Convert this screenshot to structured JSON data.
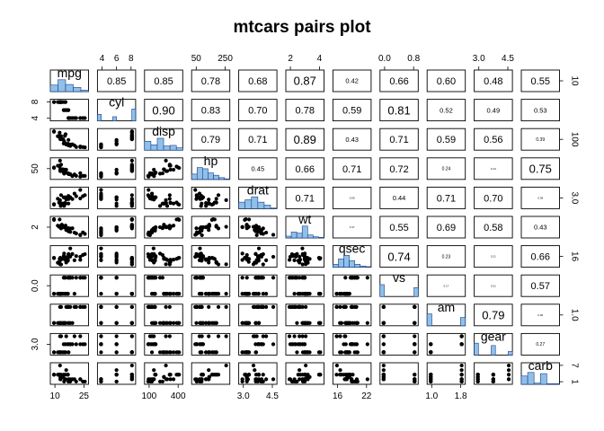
{
  "chart_data": {
    "type": "scatter",
    "title": "mtcars pairs plot",
    "variables": [
      "mpg",
      "cyl",
      "disp",
      "hp",
      "drat",
      "wt",
      "qsec",
      "vs",
      "am",
      "gear",
      "carb"
    ],
    "top_ticks": [
      {
        "col": 1,
        "labels": [
          "4",
          "6",
          "8"
        ]
      },
      {
        "col": 3,
        "labels": [
          "50",
          "250"
        ]
      },
      {
        "col": 5,
        "labels": [
          "2",
          "4"
        ]
      },
      {
        "col": 7,
        "labels": [
          "0.0",
          "0.8"
        ]
      },
      {
        "col": 9,
        "labels": [
          "3.0",
          "4.5"
        ]
      }
    ],
    "bottom_ticks": [
      {
        "col": 0,
        "labels": [
          "10",
          "25"
        ]
      },
      {
        "col": 2,
        "labels": [
          "100",
          "400"
        ]
      },
      {
        "col": 4,
        "labels": [
          "3.0",
          "4.5"
        ]
      },
      {
        "col": 6,
        "labels": [
          "16",
          "22"
        ]
      },
      {
        "col": 8,
        "labels": [
          "1.0",
          "1.8"
        ]
      }
    ],
    "left_ticks": [
      {
        "row": 1,
        "labels": [
          "4",
          "8"
        ]
      },
      {
        "row": 3,
        "labels": [
          "50"
        ]
      },
      {
        "row": 5,
        "labels": [
          "2"
        ]
      },
      {
        "row": 7,
        "labels": [
          "0.0"
        ]
      },
      {
        "row": 9,
        "labels": [
          "3.0"
        ]
      }
    ],
    "right_ticks": [
      {
        "row": 0,
        "labels": [
          "10"
        ]
      },
      {
        "row": 2,
        "labels": [
          "100"
        ]
      },
      {
        "row": 4,
        "labels": [
          "3.0"
        ]
      },
      {
        "row": 6,
        "labels": [
          "16"
        ]
      },
      {
        "row": 8,
        "labels": [
          "1.0"
        ]
      },
      {
        "row": 10,
        "labels": [
          "1",
          "7"
        ]
      }
    ],
    "correlations": [
      {
        "row": 0,
        "col": 1,
        "label": "0.85",
        "size": "normal"
      },
      {
        "row": 0,
        "col": 2,
        "label": "0.85",
        "size": "normal"
      },
      {
        "row": 0,
        "col": 3,
        "label": "0.78",
        "size": "normal"
      },
      {
        "row": 0,
        "col": 4,
        "label": "0.68",
        "size": "normal"
      },
      {
        "row": 0,
        "col": 5,
        "label": "0.87",
        "size": "large"
      },
      {
        "row": 0,
        "col": 6,
        "label": "0.42",
        "size": "small"
      },
      {
        "row": 0,
        "col": 7,
        "label": "0.66",
        "size": "normal"
      },
      {
        "row": 0,
        "col": 8,
        "label": "0.60",
        "size": "normal"
      },
      {
        "row": 0,
        "col": 9,
        "label": "0.48",
        "size": "normal"
      },
      {
        "row": 0,
        "col": 10,
        "label": "0.55",
        "size": "normal"
      },
      {
        "row": 1,
        "col": 2,
        "label": "0.90",
        "size": "large"
      },
      {
        "row": 1,
        "col": 3,
        "label": "0.83",
        "size": "normal"
      },
      {
        "row": 1,
        "col": 4,
        "label": "0.70",
        "size": "normal"
      },
      {
        "row": 1,
        "col": 5,
        "label": "0.78",
        "size": "normal"
      },
      {
        "row": 1,
        "col": 6,
        "label": "0.59",
        "size": "normal"
      },
      {
        "row": 1,
        "col": 7,
        "label": "0.81",
        "size": "large"
      },
      {
        "row": 1,
        "col": 8,
        "label": "0.52",
        "size": "small"
      },
      {
        "row": 1,
        "col": 9,
        "label": "0.49",
        "size": "small"
      },
      {
        "row": 1,
        "col": 10,
        "label": "0.53",
        "size": "small"
      },
      {
        "row": 2,
        "col": 3,
        "label": "0.79",
        "size": "normal"
      },
      {
        "row": 2,
        "col": 4,
        "label": "0.71",
        "size": "normal"
      },
      {
        "row": 2,
        "col": 5,
        "label": "0.89",
        "size": "large"
      },
      {
        "row": 2,
        "col": 6,
        "label": "0.43",
        "size": "small"
      },
      {
        "row": 2,
        "col": 7,
        "label": "0.71",
        "size": "normal"
      },
      {
        "row": 2,
        "col": 8,
        "label": "0.59",
        "size": "normal"
      },
      {
        "row": 2,
        "col": 9,
        "label": "0.56",
        "size": "normal"
      },
      {
        "row": 2,
        "col": 10,
        "label": "0.39",
        "size": "tiny"
      },
      {
        "row": 3,
        "col": 4,
        "label": "0.45",
        "size": "small"
      },
      {
        "row": 3,
        "col": 5,
        "label": "0.66",
        "size": "normal"
      },
      {
        "row": 3,
        "col": 6,
        "label": "0.71",
        "size": "normal"
      },
      {
        "row": 3,
        "col": 7,
        "label": "0.72",
        "size": "normal"
      },
      {
        "row": 3,
        "col": 8,
        "label": "0.24",
        "size": "tiny"
      },
      {
        "row": 3,
        "col": 9,
        "label": "0.13",
        "size": "micro"
      },
      {
        "row": 3,
        "col": 10,
        "label": "0.75",
        "size": "large"
      },
      {
        "row": 4,
        "col": 5,
        "label": "0.71",
        "size": "normal"
      },
      {
        "row": 4,
        "col": 6,
        "label": "0.09",
        "size": "micro"
      },
      {
        "row": 4,
        "col": 7,
        "label": "0.44",
        "size": "small"
      },
      {
        "row": 4,
        "col": 8,
        "label": "0.71",
        "size": "normal"
      },
      {
        "row": 4,
        "col": 9,
        "label": "0.70",
        "size": "normal"
      },
      {
        "row": 4,
        "col": 10,
        "label": "0.09",
        "size": "micro"
      },
      {
        "row": 5,
        "col": 6,
        "label": "0.17",
        "size": "micro"
      },
      {
        "row": 5,
        "col": 7,
        "label": "0.55",
        "size": "normal"
      },
      {
        "row": 5,
        "col": 8,
        "label": "0.69",
        "size": "normal"
      },
      {
        "row": 5,
        "col": 9,
        "label": "0.58",
        "size": "normal"
      },
      {
        "row": 5,
        "col": 10,
        "label": "0.43",
        "size": "small"
      },
      {
        "row": 6,
        "col": 7,
        "label": "0.74",
        "size": "large"
      },
      {
        "row": 6,
        "col": 8,
        "label": "0.23",
        "size": "tiny"
      },
      {
        "row": 6,
        "col": 9,
        "label": "0.21",
        "size": "micro"
      },
      {
        "row": 6,
        "col": 10,
        "label": "0.66",
        "size": "normal"
      },
      {
        "row": 7,
        "col": 8,
        "label": "0.17",
        "size": "micro"
      },
      {
        "row": 7,
        "col": 9,
        "label": "0.21",
        "size": "micro"
      },
      {
        "row": 7,
        "col": 10,
        "label": "0.57",
        "size": "normal"
      },
      {
        "row": 8,
        "col": 9,
        "label": "0.79",
        "size": "large"
      },
      {
        "row": 8,
        "col": 10,
        "label": "0.06",
        "size": "micro"
      },
      {
        "row": 9,
        "col": 10,
        "label": "0.27",
        "size": "tiny"
      }
    ],
    "histograms": [
      [
        0.55,
        1.0,
        0.6,
        0.35,
        0.12
      ],
      [
        0.55,
        0.0,
        0.0,
        0.0,
        0.35,
        0.0,
        0.0,
        0.0,
        0.0,
        1.0
      ],
      [
        0.75,
        0.45,
        1.0,
        0.35,
        0.4,
        0.2
      ],
      [
        0.45,
        1.0,
        0.9,
        0.55,
        0.35,
        0.15,
        0.05
      ],
      [
        0.55,
        0.75,
        1.0,
        0.55,
        0.3,
        0.05
      ],
      [
        0.15,
        0.5,
        0.4,
        1.0,
        0.25,
        0.1,
        0.05
      ],
      [
        0.25,
        0.7,
        1.0,
        0.55,
        0.25,
        0.1,
        0.05
      ],
      [
        1.0,
        0.0,
        0.0,
        0.0,
        0.0,
        0.0,
        0.0,
        0.0,
        0.75
      ],
      [
        1.0,
        0.0,
        0.0,
        0.0,
        0.0,
        0.0,
        0.0,
        0.7
      ],
      [
        1.0,
        0.0,
        0.0,
        0.0,
        0.8,
        0.0,
        0.0,
        0.0,
        0.3
      ],
      [
        0.7,
        1.0,
        0.1,
        0.9,
        0.05,
        0.05
      ]
    ],
    "data": {
      "mpg": [
        21.0,
        21.0,
        22.8,
        21.4,
        18.7,
        18.1,
        14.3,
        24.4,
        22.8,
        19.2,
        17.8,
        16.4,
        17.3,
        15.2,
        10.4,
        10.4,
        14.7,
        32.4,
        30.4,
        33.9,
        21.5,
        15.5,
        15.2,
        13.3,
        19.2,
        27.3,
        26.0,
        30.4,
        15.8,
        19.7,
        15.0,
        21.4
      ],
      "cyl": [
        6,
        6,
        4,
        6,
        8,
        6,
        8,
        4,
        4,
        6,
        6,
        8,
        8,
        8,
        8,
        8,
        8,
        4,
        4,
        4,
        4,
        8,
        8,
        8,
        8,
        4,
        4,
        4,
        8,
        6,
        8,
        4
      ],
      "disp": [
        160,
        160,
        108,
        258,
        360,
        225,
        360,
        146.7,
        140.8,
        167.6,
        167.6,
        275.8,
        275.8,
        275.8,
        472,
        460,
        440,
        78.7,
        75.7,
        71.1,
        120.1,
        318,
        304,
        350,
        400,
        79,
        120.3,
        95.1,
        351,
        145,
        301,
        121
      ],
      "hp": [
        110,
        110,
        93,
        110,
        175,
        105,
        245,
        62,
        95,
        123,
        123,
        180,
        180,
        180,
        205,
        215,
        230,
        66,
        52,
        65,
        97,
        150,
        150,
        245,
        175,
        66,
        91,
        113,
        264,
        175,
        335,
        109
      ],
      "drat": [
        3.9,
        3.9,
        3.85,
        3.08,
        3.15,
        2.76,
        3.21,
        3.69,
        3.92,
        3.92,
        3.92,
        3.07,
        3.07,
        3.07,
        2.93,
        3.0,
        3.23,
        4.08,
        4.93,
        4.22,
        3.7,
        2.76,
        3.15,
        3.73,
        3.08,
        4.08,
        4.43,
        3.77,
        4.22,
        3.62,
        3.54,
        4.11
      ],
      "wt": [
        2.62,
        2.875,
        2.32,
        3.215,
        3.44,
        3.46,
        3.57,
        3.19,
        3.15,
        3.44,
        3.44,
        4.07,
        3.73,
        3.78,
        5.25,
        5.424,
        5.345,
        2.2,
        1.615,
        1.835,
        2.465,
        3.52,
        3.435,
        3.84,
        3.845,
        1.935,
        2.14,
        1.513,
        3.17,
        2.77,
        3.57,
        2.78
      ],
      "qsec": [
        16.46,
        17.02,
        18.61,
        19.44,
        17.02,
        20.22,
        15.84,
        20.0,
        22.9,
        18.3,
        18.9,
        17.4,
        17.6,
        18.0,
        17.98,
        17.82,
        17.42,
        19.47,
        18.52,
        19.9,
        20.01,
        16.87,
        17.3,
        15.41,
        17.05,
        18.9,
        16.7,
        16.9,
        14.5,
        15.5,
        14.6,
        18.6
      ],
      "vs": [
        0,
        0,
        1,
        1,
        0,
        1,
        0,
        1,
        1,
        1,
        1,
        0,
        0,
        0,
        0,
        0,
        0,
        1,
        1,
        1,
        1,
        0,
        0,
        0,
        0,
        1,
        0,
        1,
        0,
        0,
        0,
        1
      ],
      "am": [
        1,
        1,
        1,
        0,
        0,
        0,
        0,
        0,
        0,
        0,
        0,
        0,
        0,
        0,
        0,
        0,
        0,
        1,
        1,
        1,
        0,
        0,
        0,
        0,
        0,
        1,
        1,
        1,
        1,
        1,
        1,
        1
      ],
      "gear": [
        4,
        4,
        4,
        3,
        3,
        3,
        3,
        4,
        4,
        4,
        4,
        3,
        3,
        3,
        3,
        3,
        3,
        4,
        4,
        4,
        3,
        3,
        3,
        3,
        3,
        4,
        5,
        5,
        5,
        5,
        5,
        4
      ],
      "carb": [
        4,
        4,
        1,
        1,
        2,
        1,
        4,
        2,
        2,
        4,
        4,
        3,
        3,
        3,
        4,
        4,
        4,
        1,
        2,
        1,
        1,
        2,
        2,
        4,
        2,
        1,
        2,
        2,
        4,
        6,
        8,
        2
      ]
    },
    "colors": {
      "histogram_fill": "#8fc0ea",
      "histogram_stroke": "#1a3f86",
      "points": "#000000",
      "frame": "#000000"
    }
  }
}
